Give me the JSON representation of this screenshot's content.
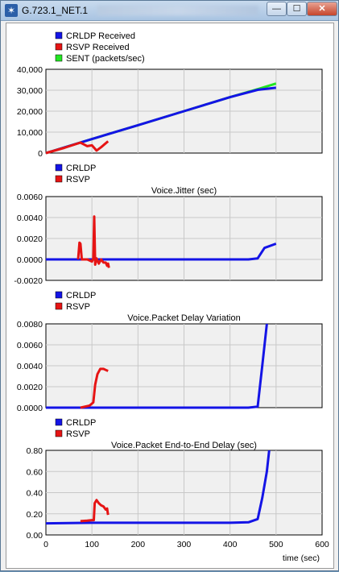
{
  "window": {
    "title": "G.723.1_NET.1",
    "minimize": "—",
    "maximize": "☐",
    "close": "✕"
  },
  "colors": {
    "blue": "#1414e6",
    "red": "#e61414",
    "green": "#22e622"
  },
  "chart_data": [
    {
      "type": "line",
      "title": "",
      "legend": [
        "CRLDP Received",
        "RSVP Received",
        "SENT (packets/sec)"
      ],
      "legend_placement": "top-left",
      "grid": true,
      "xlim": [
        0,
        600
      ],
      "ylim": [
        0,
        40000
      ],
      "y_ticks": [
        "0",
        "10,000",
        "20,000",
        "30,000",
        "40,000"
      ],
      "series": [
        {
          "name": "SENT (packets/sec)",
          "color": "#22e622",
          "x": [
            0,
            100,
            200,
            300,
            400,
            460,
            500
          ],
          "y": [
            0,
            6700,
            13300,
            20000,
            26700,
            30500,
            33200
          ]
        },
        {
          "name": "CRLDP Received",
          "color": "#1414e6",
          "x": [
            0,
            100,
            200,
            300,
            400,
            460,
            500
          ],
          "y": [
            0,
            6700,
            13300,
            20000,
            26700,
            30200,
            31200
          ]
        },
        {
          "name": "RSVP Received",
          "color": "#e61414",
          "x": [
            0,
            40,
            75,
            90,
            100,
            110,
            120,
            135
          ],
          "y": [
            0,
            2500,
            5000,
            3300,
            3700,
            1200,
            2800,
            5600
          ]
        }
      ]
    },
    {
      "type": "line",
      "title": "Voice.Jitter (sec)",
      "legend": [
        "CRLDP",
        "RSVP"
      ],
      "legend_placement": "top-left",
      "grid": true,
      "xlim": [
        0,
        600
      ],
      "ylim": [
        -0.002,
        0.006
      ],
      "y_ticks": [
        "0.0060",
        "0.0040",
        "0.0020",
        "0.0000",
        "-0.0020"
      ],
      "series": [
        {
          "name": "CRLDP",
          "color": "#1414e6",
          "x": [
            0,
            100,
            200,
            300,
            440,
            460,
            475,
            500
          ],
          "y": [
            0,
            0,
            0,
            0,
            0,
            0.0001,
            0.0011,
            0.0015
          ]
        },
        {
          "name": "RSVP",
          "color": "#e61414",
          "x": [
            70,
            73,
            75,
            78,
            80,
            90,
            100,
            103,
            105,
            107,
            110,
            115,
            120,
            125,
            130,
            133,
            135,
            137
          ],
          "y": [
            0,
            0.0016,
            0.0015,
            0,
            0,
            0,
            -0.0002,
            0.0001,
            0.0041,
            -0.0005,
            0.0001,
            -0.0004,
            0,
            -0.0003,
            -0.0003,
            -0.0006,
            -0.0004,
            -0.0008
          ]
        }
      ]
    },
    {
      "type": "line",
      "title": "Voice.Packet Delay Variation",
      "legend": [
        "CRLDP",
        "RSVP"
      ],
      "legend_placement": "top-left",
      "grid": true,
      "xlim": [
        0,
        600
      ],
      "ylim": [
        0,
        0.008
      ],
      "y_ticks": [
        "0.0080",
        "0.0060",
        "0.0040",
        "0.0020",
        "0.0000"
      ],
      "series": [
        {
          "name": "CRLDP",
          "color": "#1414e6",
          "x": [
            0,
            100,
            200,
            300,
            440,
            460,
            470,
            480
          ],
          "y": [
            0,
            0,
            0,
            0,
            0,
            0.0001,
            0.004,
            0.008
          ]
        },
        {
          "name": "RSVP",
          "color": "#e61414",
          "x": [
            75,
            85,
            95,
            103,
            107,
            112,
            118,
            125,
            130,
            135
          ],
          "y": [
            0,
            0.0001,
            0.0002,
            0.0005,
            0.0022,
            0.0032,
            0.0037,
            0.0037,
            0.0036,
            0.0035
          ]
        }
      ]
    },
    {
      "type": "line",
      "title": "Voice.Packet End-to-End Delay (sec)",
      "legend": [
        "CRLDP",
        "RSVP"
      ],
      "legend_placement": "top-left",
      "grid": true,
      "xlim": [
        0,
        600
      ],
      "xlabel": "time (sec)",
      "x_ticks": [
        "0",
        "100",
        "200",
        "300",
        "400",
        "500",
        "600"
      ],
      "ylim": [
        0,
        0.8
      ],
      "y_ticks": [
        "0.80",
        "0.60",
        "0.40",
        "0.20",
        "0.00"
      ],
      "series": [
        {
          "name": "CRLDP",
          "color": "#1414e6",
          "x": [
            0,
            100,
            200,
            300,
            400,
            440,
            460,
            470,
            480,
            485
          ],
          "y": [
            0.11,
            0.115,
            0.115,
            0.115,
            0.115,
            0.12,
            0.15,
            0.35,
            0.6,
            0.8
          ]
        },
        {
          "name": "RSVP",
          "color": "#e61414",
          "x": [
            75,
            90,
            100,
            104,
            106,
            110,
            115,
            120,
            125,
            130,
            133,
            135
          ],
          "y": [
            0.13,
            0.135,
            0.14,
            0.14,
            0.3,
            0.33,
            0.3,
            0.28,
            0.27,
            0.24,
            0.25,
            0.19
          ]
        }
      ]
    }
  ]
}
